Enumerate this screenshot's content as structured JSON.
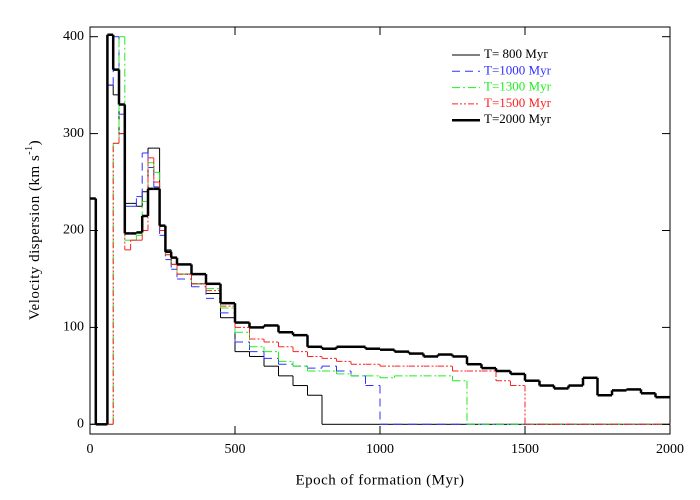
{
  "chart_data": {
    "type": "step",
    "x_label": "Epoch of formation (Myr)",
    "y_label": "Velocity dispersion (km s",
    "y_label_sup": "-1",
    "y_label_end": ")",
    "xlim": [
      0,
      2000
    ],
    "ylim": [
      -10,
      410
    ],
    "xticks": [
      0,
      500,
      1000,
      1500,
      2000
    ],
    "yticks": [
      0,
      100,
      200,
      300,
      400
    ],
    "legend": "upper right",
    "x": [
      0,
      20,
      40,
      60,
      80,
      100,
      120,
      140,
      160,
      180,
      200,
      220,
      240,
      260,
      280,
      300,
      350,
      400,
      450,
      500,
      550,
      600,
      650,
      700,
      750,
      800,
      850,
      900,
      950,
      1000,
      1050,
      1100,
      1150,
      1200,
      1250,
      1300,
      1350,
      1400,
      1450,
      1500,
      1550,
      1600,
      1650,
      1700,
      1750,
      1800,
      1850,
      1900,
      1950,
      2000
    ],
    "series": [
      {
        "name": "T= 800 Myr",
        "color": "#000000",
        "dash": "none",
        "width": 1,
        "values": [
          0,
          0,
          0,
          350,
          340,
          300,
          228,
          228,
          225,
          240,
          285,
          285,
          200,
          180,
          165,
          155,
          145,
          135,
          110,
          75,
          70,
          60,
          50,
          40,
          30,
          0,
          0,
          0,
          0,
          0,
          0,
          0,
          0,
          0,
          0,
          0,
          0,
          0,
          0,
          0,
          0,
          0,
          0,
          0,
          0,
          0,
          0,
          0,
          0,
          0
        ]
      },
      {
        "name": "T=1000 Myr",
        "color": "#3030ff",
        "dash": "8 5",
        "width": 1,
        "values": [
          0,
          0,
          0,
          350,
          400,
          320,
          225,
          225,
          235,
          280,
          265,
          245,
          195,
          170,
          160,
          150,
          142,
          130,
          115,
          85,
          75,
          68,
          62,
          60,
          58,
          60,
          55,
          50,
          40,
          0,
          0,
          0,
          0,
          0,
          0,
          0,
          0,
          0,
          0,
          0,
          0,
          0,
          0,
          0,
          0,
          0,
          0,
          0,
          0,
          0
        ]
      },
      {
        "name": "T=1300 Myr",
        "color": "#22ee22",
        "dash": "8 3 2 3",
        "width": 1,
        "values": [
          0,
          0,
          0,
          0,
          290,
          400,
          190,
          190,
          195,
          230,
          270,
          260,
          200,
          175,
          165,
          155,
          145,
          140,
          120,
          95,
          80,
          75,
          65,
          60,
          55,
          55,
          52,
          50,
          50,
          48,
          50,
          50,
          50,
          50,
          45,
          0,
          0,
          0,
          0,
          0,
          0,
          0,
          0,
          0,
          0,
          0,
          0,
          0,
          0,
          0
        ]
      },
      {
        "name": "T=1500 Myr",
        "color": "#ff2020",
        "dash": "6 2 2 2 2 2",
        "width": 1,
        "values": [
          0,
          0,
          0,
          0,
          290,
          300,
          180,
          190,
          190,
          200,
          275,
          250,
          200,
          175,
          165,
          155,
          145,
          138,
          122,
          100,
          88,
          85,
          80,
          75,
          70,
          68,
          65,
          62,
          62,
          60,
          60,
          60,
          60,
          60,
          55,
          55,
          55,
          45,
          40,
          0,
          0,
          0,
          0,
          0,
          0,
          0,
          0,
          0,
          0,
          0
        ]
      },
      {
        "name": "T=2000 Myr",
        "color": "#000000",
        "dash": "none",
        "width": 2.5,
        "values": [
          233,
          0,
          0,
          402,
          366,
          330,
          197,
          197,
          198,
          215,
          243,
          243,
          205,
          178,
          172,
          165,
          155,
          145,
          125,
          105,
          100,
          102,
          95,
          92,
          80,
          78,
          80,
          80,
          78,
          77,
          75,
          73,
          70,
          72,
          70,
          62,
          58,
          55,
          52,
          45,
          40,
          37,
          40,
          48,
          30,
          35,
          36,
          32,
          28,
          28
        ]
      }
    ]
  }
}
